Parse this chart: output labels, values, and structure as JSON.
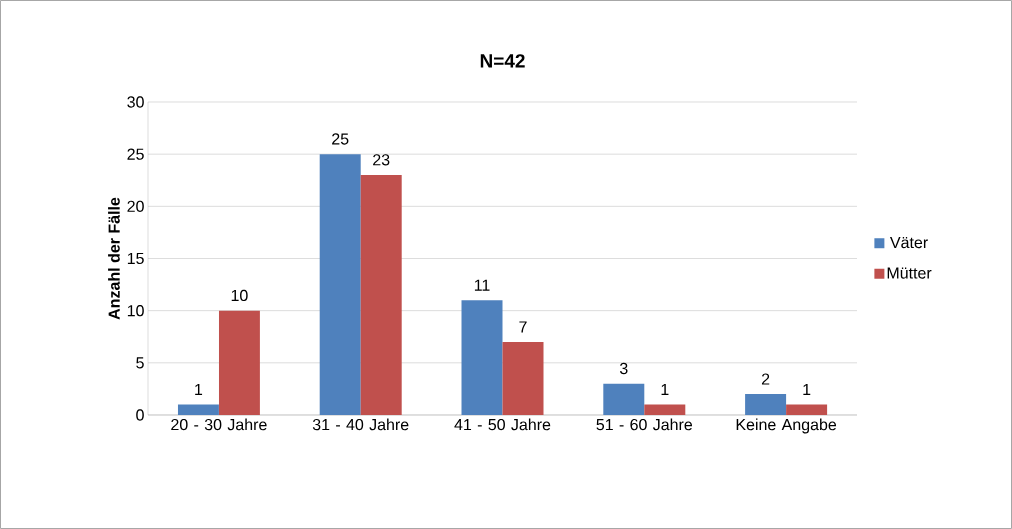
{
  "chart_data": {
    "type": "bar",
    "title": "N=42",
    "ylabel": "Anzahl der Fälle",
    "categories": [
      "20 - 30 Jahre",
      "31 - 40 Jahre",
      "41 - 50 Jahre",
      "51 - 60 Jahre",
      "Keine Angabe"
    ],
    "series": [
      {
        "name": "Väter",
        "color": "#4f81bd",
        "values": [
          1,
          25,
          11,
          3,
          2
        ]
      },
      {
        "name": "Mütter",
        "color": "#c0504d",
        "values": [
          10,
          23,
          7,
          1,
          1
        ]
      }
    ],
    "ylim": [
      0,
      30
    ],
    "yticks": [
      0,
      5,
      10,
      15,
      20,
      25,
      30
    ],
    "grid": "y",
    "legend": "right",
    "data_labels": true
  }
}
